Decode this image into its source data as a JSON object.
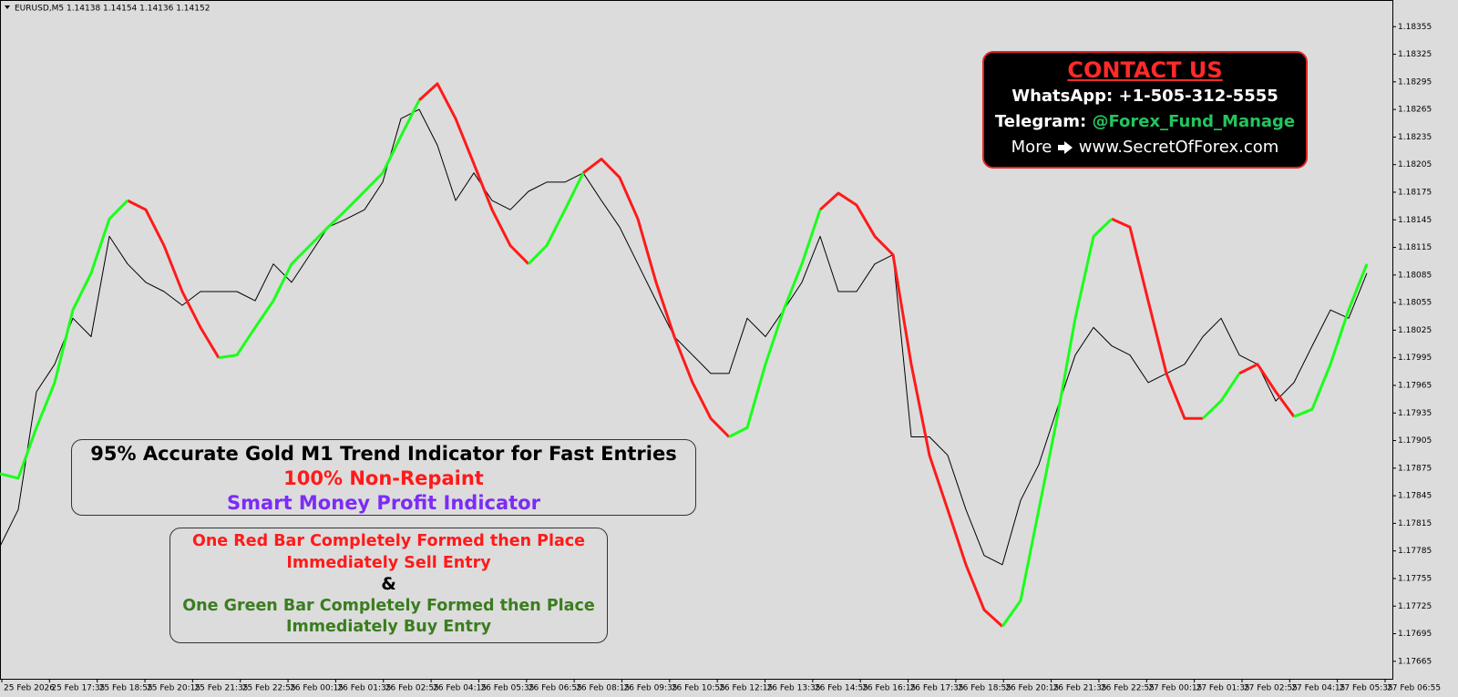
{
  "chart_data": {
    "type": "line",
    "title": "EURUSD,M5  1.14138 1.14154 1.14136 1.14152",
    "xtick_labels": [
      "25 Feb 2026",
      "25 Feb 17:35",
      "25 Feb 18:55",
      "25 Feb 20:15",
      "25 Feb 21:35",
      "25 Feb 22:55",
      "26 Feb 00:15",
      "26 Feb 01:35",
      "26 Feb 02:55",
      "26 Feb 04:15",
      "26 Feb 05:35",
      "26 Feb 06:55",
      "26 Feb 08:15",
      "26 Feb 09:35",
      "26 Feb 10:55",
      "26 Feb 12:15",
      "26 Feb 13:35",
      "26 Feb 14:55",
      "26 Feb 16:15",
      "26 Feb 17:35",
      "26 Feb 18:55",
      "26 Feb 20:15",
      "26 Feb 21:35",
      "26 Feb 22:55",
      "27 Feb 00:15",
      "27 Feb 01:35",
      "27 Feb 02:55",
      "27 Feb 04:15",
      "27 Feb 05:35",
      "27 Feb 06:55"
    ],
    "ylim": [
      1.17646,
      1.18384
    ],
    "yticks": [
      1.18355,
      1.18325,
      1.18295,
      1.18265,
      1.18235,
      1.18205,
      1.18175,
      1.18145,
      1.18115,
      1.18085,
      1.18055,
      1.18025,
      1.17995,
      1.17965,
      1.17935,
      1.17905,
      1.17875,
      1.17845,
      1.17815,
      1.17785,
      1.17755,
      1.17725,
      1.17695,
      1.17665
    ],
    "series": [
      {
        "color": "#000000",
        "width": 1,
        "values": [
          1.1779,
          1.1783,
          1.17958,
          1.17988,
          1.18038,
          1.18018,
          1.18127,
          1.18097,
          1.18077,
          1.18067,
          1.18052,
          1.18067,
          1.18067,
          1.18067,
          1.18057,
          1.18097,
          1.18077,
          1.18107,
          1.18137,
          1.18146,
          1.18156,
          1.18186,
          1.18255,
          1.18265,
          1.18226,
          1.18166,
          1.18196,
          1.18166,
          1.18156,
          1.18176,
          1.18186,
          1.18186,
          1.18196,
          1.18166,
          1.18137,
          1.18097,
          1.18057,
          1.18018,
          1.17998,
          1.17978,
          1.17978,
          1.18038,
          1.18018,
          1.18047,
          1.18077,
          1.18127,
          1.18067,
          1.18067,
          1.18097,
          1.18107,
          1.17909,
          1.17909,
          1.17889,
          1.1783,
          1.1778,
          1.1777,
          1.1784,
          1.17879,
          1.17939,
          1.17998,
          1.18028,
          1.18008,
          1.17998,
          1.17968,
          1.17978,
          1.17988,
          1.18018,
          1.18038,
          1.17998,
          1.17988,
          1.17948,
          1.17968,
          1.18008,
          1.18047,
          1.18038,
          1.18087
        ]
      },
      {
        "color": "#ff1a1a",
        "width": 3,
        "values": [
          1.17869,
          null,
          null,
          null,
          null,
          null,
          null,
          1.18166,
          1.18156,
          1.18117,
          1.18067,
          1.18028,
          1.17995,
          null,
          null,
          null,
          null,
          null,
          null,
          null,
          null,
          null,
          null,
          1.18275,
          1.18293,
          1.18255,
          1.18206,
          1.18156,
          1.18117,
          1.18097,
          null,
          null,
          1.18196,
          1.18211,
          1.18191,
          1.18146,
          1.18077,
          1.18018,
          1.17968,
          1.17929,
          1.17909,
          null,
          null,
          null,
          null,
          1.18156,
          1.18174,
          1.18161,
          1.18127,
          1.18107,
          1.17988,
          1.17889,
          1.1783,
          1.1777,
          1.17721,
          1.17703,
          null,
          null,
          null,
          null,
          null,
          1.18146,
          1.18137,
          1.18057,
          1.17978,
          1.17929,
          1.17929,
          null,
          1.17978,
          1.17988,
          1.17958,
          1.17931,
          null,
          null,
          null,
          null
        ]
      },
      {
        "color": "#1aff1a",
        "width": 3,
        "values": [
          1.17869,
          1.17864,
          1.17919,
          1.17968,
          1.18047,
          1.18087,
          1.18146,
          1.18166,
          null,
          null,
          null,
          null,
          1.17995,
          1.17998,
          1.18028,
          1.18057,
          1.18097,
          1.18117,
          1.18137,
          1.18156,
          1.18176,
          1.18196,
          1.18236,
          1.18275,
          null,
          null,
          null,
          null,
          null,
          1.18097,
          1.18117,
          1.18156,
          1.18196,
          null,
          null,
          null,
          null,
          null,
          null,
          null,
          1.17909,
          1.17919,
          1.17988,
          1.18047,
          1.18097,
          1.18156,
          null,
          null,
          null,
          null,
          null,
          null,
          null,
          null,
          null,
          1.17703,
          1.17731,
          1.1783,
          1.17929,
          1.18038,
          1.18127,
          1.18146,
          null,
          null,
          null,
          null,
          1.17929,
          1.17948,
          1.17978,
          null,
          null,
          1.17931,
          1.17939,
          1.17988,
          1.18047,
          1.18097
        ]
      }
    ]
  },
  "info_box": {
    "line1": "95% Accurate Gold M1 Trend Indicator for Fast Entries",
    "line2": "100% Non-Repaint",
    "line3": "Smart Money Profit Indicator"
  },
  "rule_box": {
    "sell1": "One Red Bar Completely Formed then Place",
    "sell2": "Immediately Sell Entry",
    "and": "&",
    "buy1": "One Green Bar Completely Formed then Place",
    "buy2": "Immediately Buy Entry"
  },
  "contact": {
    "title": "CONTACT US",
    "whatsapp": "WhatsApp: +1-505-312-5555",
    "telegram_label": "Telegram:",
    "telegram_handle": "@Forex_Fund_Manage",
    "more": "More",
    "website": "www.SecretOfForex.com"
  }
}
